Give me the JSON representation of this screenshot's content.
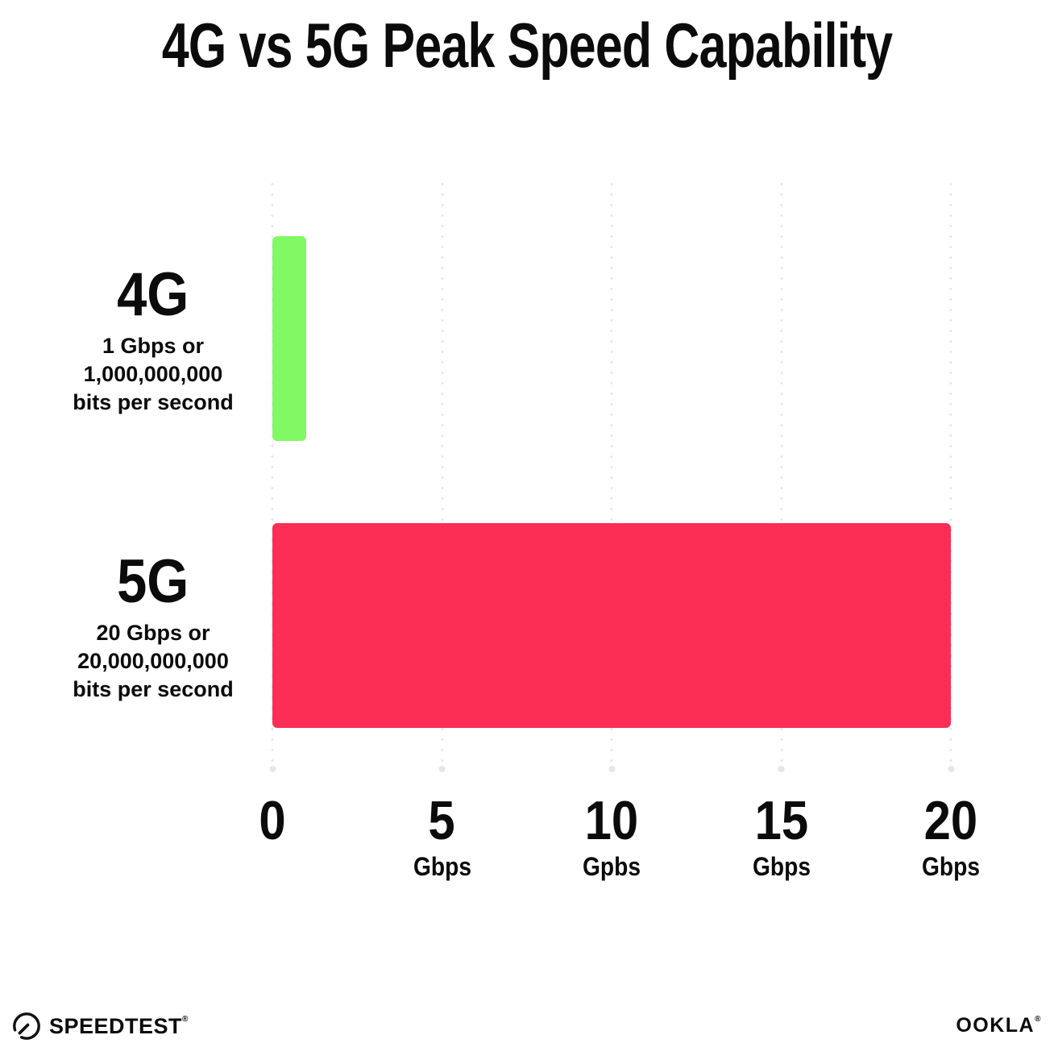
{
  "title": "4G vs 5G Peak Speed Capability",
  "chart_data": {
    "type": "bar",
    "orientation": "horizontal",
    "title": "4G vs 5G Peak Speed Capability",
    "x_max": 20,
    "grid": "dotted-vertical",
    "gridline_color": "#E3E6F1",
    "x_ticks": [
      {
        "value": 0,
        "label": "0",
        "unit": ""
      },
      {
        "value": 5,
        "label": "5",
        "unit": "Gbps"
      },
      {
        "value": 10,
        "label": "10",
        "unit": "Gpbs"
      },
      {
        "value": 15,
        "label": "15",
        "unit": "Gbps"
      },
      {
        "value": 20,
        "label": "20",
        "unit": "Gbps"
      }
    ],
    "series": [
      {
        "name": "4G",
        "value": 1,
        "color": "#80F964",
        "description_lines": [
          "1 Gbps or",
          "1,000,000,000",
          "bits per second"
        ]
      },
      {
        "name": "5G",
        "value": 20,
        "color": "#FC2E56",
        "description_lines": [
          "20 Gbps or",
          "20,000,000,000",
          "bits per second"
        ]
      }
    ]
  },
  "footer": {
    "speedtest_label": "SPEEDTEST",
    "speedtest_reg": "®",
    "ookla_label": "OOKLA",
    "ookla_reg": "®"
  }
}
